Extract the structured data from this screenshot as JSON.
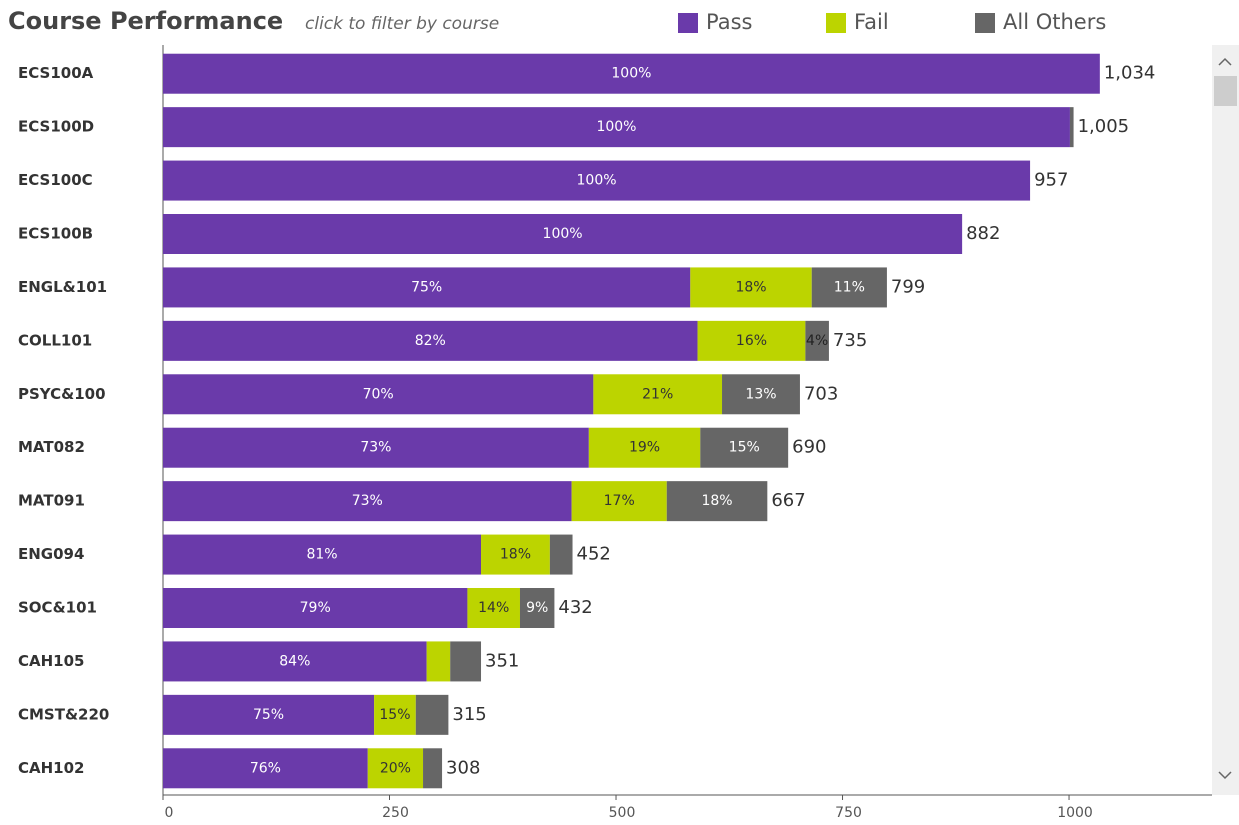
{
  "chart_data": {
    "type": "stacked_hbar",
    "title": "Course Performance",
    "subtitle": "click to filter by course",
    "categories": [
      "ECS100A",
      "ECS100D",
      "ECS100C",
      "ECS100B",
      "ENGL&101",
      "COLL101",
      "PSYC&100",
      "MAT082",
      "MAT091",
      "ENG094",
      "SOC&101",
      "CAH105",
      "CMST&220",
      "CAH102"
    ],
    "series": [
      {
        "name": "Pass",
        "color": "#6a3aaa",
        "label_color": "#ffffff",
        "values": [
          1034,
          1001,
          957,
          882,
          582,
          590,
          475,
          470,
          451,
          351,
          336,
          291,
          233,
          226
        ],
        "segment_labels": [
          "100%",
          "100%",
          "100%",
          "100%",
          "75%",
          "82%",
          "70%",
          "73%",
          "73%",
          "81%",
          "79%",
          "84%",
          "75%",
          "76%"
        ]
      },
      {
        "name": "Fail",
        "color": "#bcd400",
        "label_color": "#333333",
        "values": [
          0,
          0,
          0,
          0,
          134,
          119,
          142,
          123,
          105,
          76,
          58,
          26,
          46,
          61
        ],
        "segment_labels": [
          null,
          null,
          null,
          null,
          "18%",
          "16%",
          "21%",
          "19%",
          "17%",
          "18%",
          "14%",
          null,
          "15%",
          "20%"
        ]
      },
      {
        "name": "All Others",
        "color": "#666666",
        "label_color": "#ffffff",
        "values": [
          0,
          4,
          0,
          0,
          83,
          26,
          86,
          97,
          111,
          25,
          38,
          34,
          36,
          21
        ],
        "segment_labels": [
          null,
          null,
          null,
          null,
          "11%",
          "4%",
          "13%",
          "15%",
          "18%",
          null,
          "9%",
          null,
          null,
          null
        ]
      }
    ],
    "totals": [
      {
        "value": 1034,
        "label": "1,034"
      },
      {
        "value": 1005,
        "label": "1,005"
      },
      957,
      882,
      799,
      735,
      703,
      690,
      667,
      452,
      432,
      351,
      315,
      308
    ],
    "xlim": [
      0,
      1160
    ],
    "xticks": [
      0,
      250,
      500,
      750,
      1000
    ]
  }
}
